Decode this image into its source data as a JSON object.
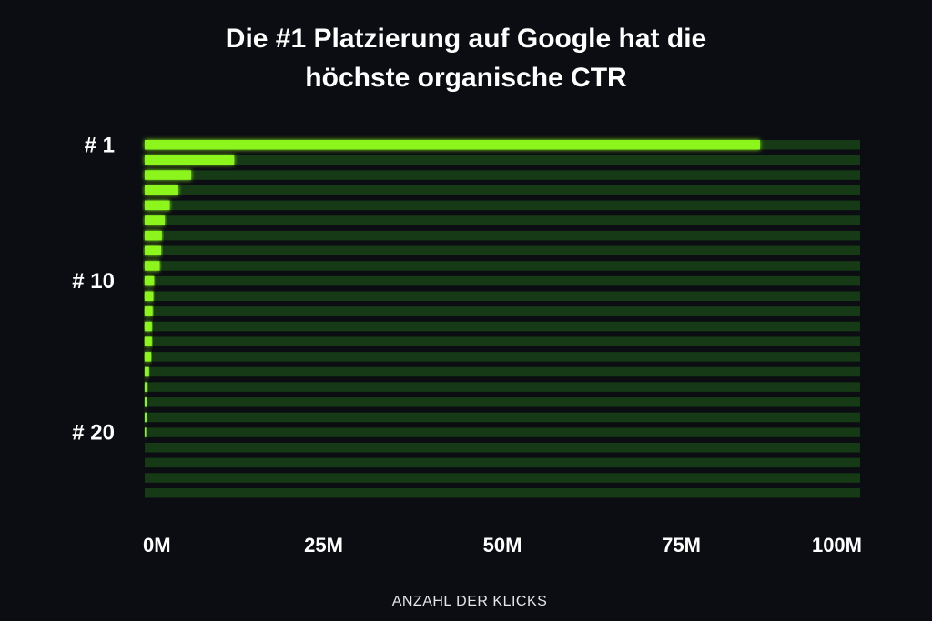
{
  "chart_data": {
    "type": "bar",
    "orientation": "horizontal",
    "title_lines": [
      "Die #1 Platzierung auf Google hat die",
      "höchste organische CTR"
    ],
    "xlabel": "ANZAHL DER KLICKS",
    "xlim": [
      0,
      100000000
    ],
    "x_ticks": [
      {
        "value": 0,
        "label": "0M"
      },
      {
        "value": 25000000,
        "label": "25M"
      },
      {
        "value": 50000000,
        "label": "50M"
      },
      {
        "value": 75000000,
        "label": "75M"
      },
      {
        "value": 100000000,
        "label": "100M"
      }
    ],
    "category_labels": [
      {
        "rank": 1,
        "label": "# 1"
      },
      {
        "rank": 10,
        "label": "# 10"
      },
      {
        "rank": 20,
        "label": "# 20"
      }
    ],
    "ranks": [
      1,
      2,
      3,
      4,
      5,
      6,
      7,
      8,
      9,
      10,
      11,
      12,
      13,
      14,
      15,
      16,
      17,
      18,
      19,
      20,
      21,
      22,
      23,
      24
    ],
    "values": [
      86000000,
      12500000,
      6500000,
      4700000,
      3500000,
      2800000,
      2400000,
      2300000,
      2100000,
      1300000,
      1200000,
      1100000,
      1000000,
      1000000,
      900000,
      600000,
      400000,
      300000,
      250000,
      200000,
      0,
      0,
      0,
      0
    ],
    "colors": {
      "bar": "#8cf51e",
      "track": "#163a16",
      "background": "#0b0d12"
    },
    "grid": false,
    "legend": "none"
  }
}
